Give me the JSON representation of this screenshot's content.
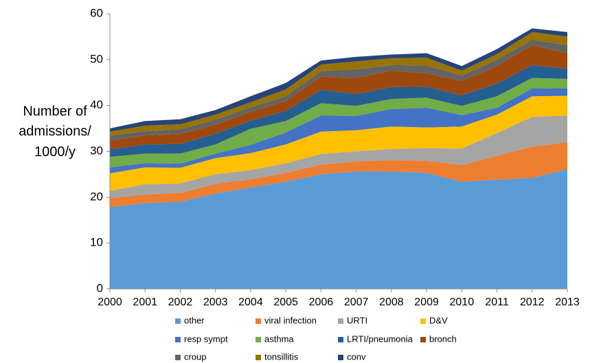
{
  "chart_data": {
    "type": "stacked-area",
    "ylabel": [
      "Number of",
      "admissions/",
      "1000/y"
    ],
    "x": [
      2000,
      2001,
      2002,
      2003,
      2004,
      2005,
      2006,
      2007,
      2008,
      2009,
      2010,
      2011,
      2012,
      2013
    ],
    "xlim": [
      2000,
      2013
    ],
    "xticks": [
      2000,
      2001,
      2002,
      2003,
      2004,
      2005,
      2006,
      2007,
      2008,
      2009,
      2010,
      2011,
      2012,
      2013
    ],
    "ylim": [
      0,
      60
    ],
    "yticks": [
      0,
      10,
      20,
      30,
      40,
      50,
      60
    ],
    "grid": false,
    "legend": "bottom",
    "series": [
      {
        "name": "other",
        "color": "#5b9bd5",
        "values": [
          17.8,
          18.7,
          19.0,
          20.8,
          22.1,
          23.4,
          25.0,
          25.6,
          25.6,
          25.3,
          23.4,
          23.8,
          24.2,
          26.1
        ]
      },
      {
        "name": "viral infection",
        "color": "#ed7d31",
        "values": [
          2.0,
          1.9,
          1.9,
          2.1,
          1.8,
          1.9,
          2.1,
          2.2,
          2.5,
          2.6,
          3.6,
          5.2,
          6.8,
          5.9
        ]
      },
      {
        "name": "URTI",
        "color": "#a5a5a5",
        "values": [
          1.6,
          2.2,
          2.1,
          2.1,
          2.0,
          2.1,
          2.3,
          2.2,
          2.4,
          2.8,
          3.6,
          5.0,
          6.5,
          5.8
        ]
      },
      {
        "name": "D&V",
        "color": "#ffc000",
        "values": [
          3.8,
          3.7,
          3.4,
          3.5,
          3.7,
          4.1,
          4.9,
          4.6,
          4.9,
          4.5,
          4.8,
          4.0,
          4.5,
          4.3
        ]
      },
      {
        "name": "resp sympt",
        "color": "#4472c4",
        "values": [
          1.3,
          0.9,
          0.9,
          1.0,
          1.8,
          2.6,
          3.5,
          3.1,
          3.8,
          4.3,
          2.5,
          1.5,
          1.7,
          1.6
        ]
      },
      {
        "name": "asthma",
        "color": "#70ad47",
        "values": [
          2.3,
          2.1,
          2.2,
          2.0,
          3.5,
          2.5,
          2.7,
          2.2,
          2.2,
          2.2,
          2.0,
          2.5,
          2.3,
          2.1
        ]
      },
      {
        "name": "LRTI/pneumonia",
        "color": "#255e91",
        "values": [
          1.6,
          2.0,
          2.1,
          2.3,
          1.8,
          2.2,
          2.9,
          2.6,
          2.6,
          2.4,
          2.3,
          2.8,
          2.8,
          2.2
        ]
      },
      {
        "name": "bronch",
        "color": "#9e480e",
        "values": [
          1.9,
          2.0,
          2.2,
          2.0,
          1.9,
          2.2,
          2.9,
          3.5,
          3.6,
          2.9,
          3.2,
          3.8,
          4.4,
          3.4
        ]
      },
      {
        "name": "croup",
        "color": "#636363",
        "values": [
          1.1,
          0.9,
          1.0,
          1.1,
          1.0,
          1.0,
          1.2,
          1.9,
          1.2,
          1.7,
          1.1,
          1.4,
          1.1,
          1.8
        ]
      },
      {
        "name": "tonsillitis",
        "color": "#997300",
        "values": [
          0.9,
          1.2,
          1.1,
          1.1,
          1.1,
          1.5,
          1.4,
          1.7,
          1.5,
          1.7,
          1.1,
          1.2,
          1.7,
          1.8
        ]
      },
      {
        "name": "conv",
        "color": "#264478",
        "values": [
          0.7,
          1.0,
          1.1,
          1.0,
          1.3,
          1.4,
          0.9,
          1.0,
          0.8,
          1.0,
          1.0,
          1.1,
          0.8,
          1.0
        ]
      }
    ]
  }
}
